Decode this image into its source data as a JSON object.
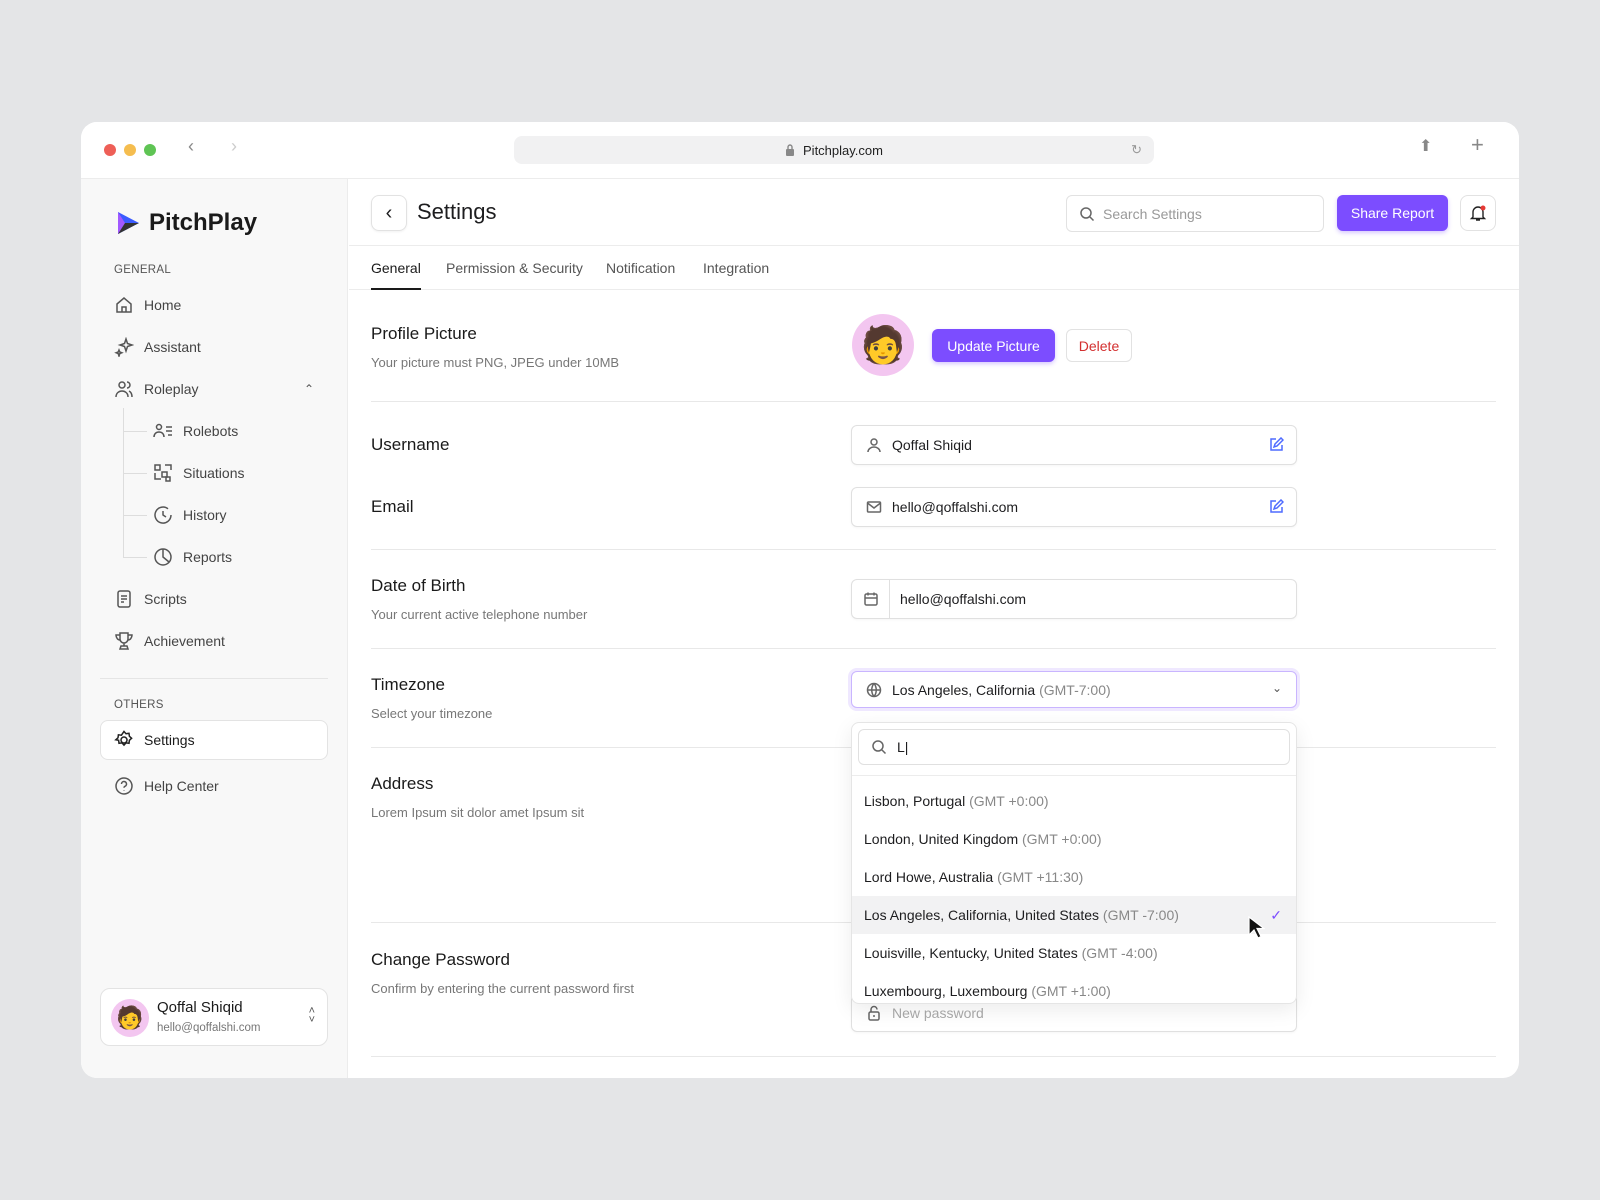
{
  "browser": {
    "url": "Pitchplay.com"
  },
  "brand": {
    "name": "PitchPlay",
    "accent": "#7c4dff"
  },
  "sidebar": {
    "general_label": "GENERAL",
    "items": [
      {
        "label": "Home",
        "icon": "home-icon"
      },
      {
        "label": "Assistant",
        "icon": "sparkle-icon"
      },
      {
        "label": "Roleplay",
        "icon": "users-icon"
      }
    ],
    "roleplay_children": [
      {
        "label": "Rolebots"
      },
      {
        "label": "Situations"
      },
      {
        "label": "History"
      },
      {
        "label": "Reports"
      }
    ],
    "items2": [
      {
        "label": "Scripts"
      },
      {
        "label": "Achievement"
      }
    ],
    "others_label": "OTHERS",
    "others": [
      {
        "label": "Settings"
      },
      {
        "label": "Help Center"
      }
    ],
    "user": {
      "name": "Qoffal Shiqid",
      "email": "hello@qoffalshi.com"
    }
  },
  "header": {
    "title": "Settings",
    "search_placeholder": "Search Settings",
    "share_label": "Share Report"
  },
  "tabs": [
    {
      "label": "General",
      "active": true
    },
    {
      "label": "Permission & Security"
    },
    {
      "label": "Notification"
    },
    {
      "label": "Integration"
    }
  ],
  "profile": {
    "title": "Profile Picture",
    "desc": "Your picture must PNG, JPEG under 10MB",
    "update_label": "Update Picture",
    "delete_label": "Delete"
  },
  "username": {
    "label": "Username",
    "value": "Qoffal Shiqid"
  },
  "email": {
    "label": "Email",
    "value": "hello@qoffalshi.com"
  },
  "dob": {
    "label": "Date of Birth",
    "desc": "Your current active telephone number",
    "value": "hello@qoffalshi.com"
  },
  "timezone": {
    "label": "Timezone",
    "desc": "Select your timezone",
    "value": "Los Angeles, California",
    "value_offset": "(GMT-7:00)",
    "search_value": "L|",
    "options": [
      {
        "name": "Lisbon, Portugal",
        "offset": "(GMT +0:00)"
      },
      {
        "name": "London, United Kingdom",
        "offset": "(GMT +0:00)"
      },
      {
        "name": "Lord Howe, Australia",
        "offset": "(GMT +11:30)"
      },
      {
        "name": "Los Angeles, California, United States",
        "offset": "(GMT -7:00)",
        "selected": true
      },
      {
        "name": "Louisville, Kentucky, United States",
        "offset": "(GMT -4:00)"
      },
      {
        "name": "Luxembourg, Luxembourg",
        "offset": "(GMT +1:00)"
      }
    ]
  },
  "address": {
    "label": "Address",
    "desc": "Lorem Ipsum sit dolor amet Ipsum sit"
  },
  "password": {
    "label": "Change Password",
    "desc": "Confirm by entering the current password first",
    "new_placeholder": "New password"
  }
}
